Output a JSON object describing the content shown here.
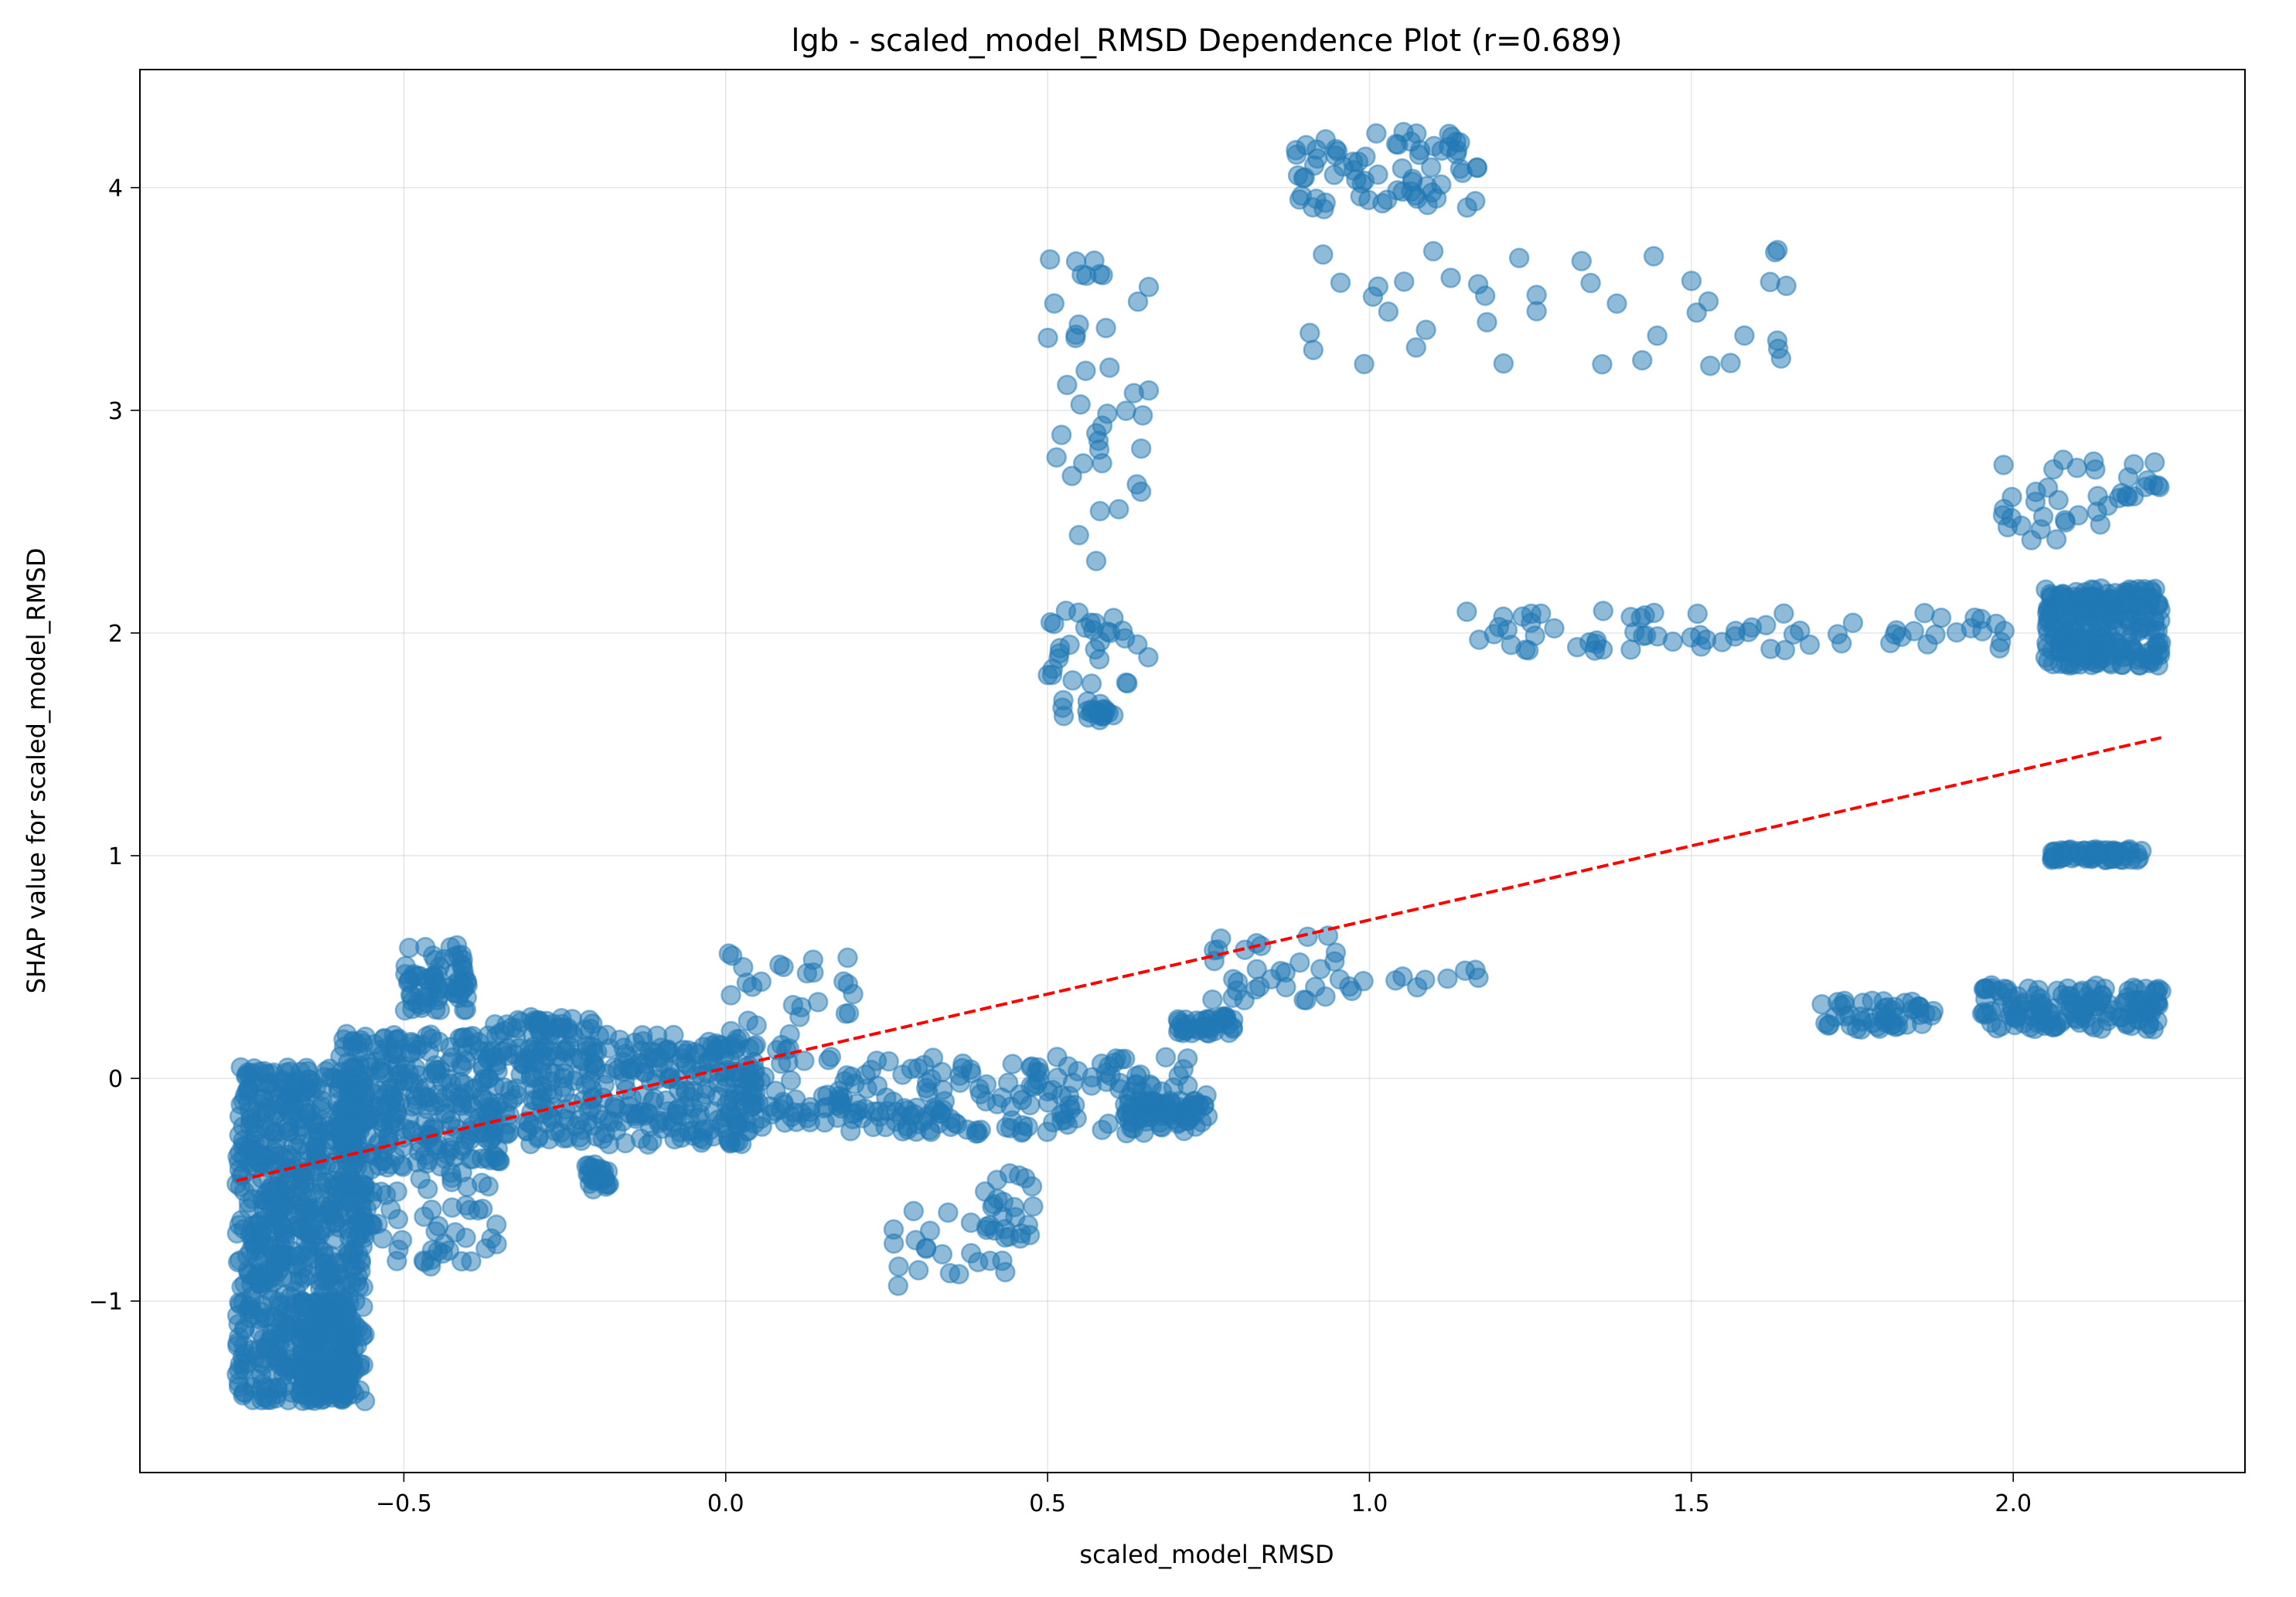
{
  "chart_data": {
    "type": "scatter",
    "title": "lgb - scaled_model_RMSD Dependence Plot (r=0.689)",
    "xlabel": "scaled_model_RMSD",
    "ylabel": "SHAP value for scaled_model_RMSD",
    "xlim": [
      -0.91,
      2.36
    ],
    "ylim": [
      -1.77,
      4.53
    ],
    "x_ticks": [
      -0.5,
      0.0,
      0.5,
      1.0,
      1.5,
      2.0
    ],
    "x_tick_labels": [
      "−0.5",
      "0.0",
      "0.5",
      "1.0",
      "1.5",
      "2.0"
    ],
    "y_ticks": [
      -1,
      0,
      1,
      2,
      3,
      4
    ],
    "y_tick_labels": [
      "−1",
      "0",
      "1",
      "2",
      "3",
      "4"
    ],
    "grid": true,
    "point_color": "#1f77b4",
    "trend_color": "#ff0000",
    "trend_line": {
      "x": [
        -0.76,
        2.23
      ],
      "y": [
        -0.46,
        1.53
      ]
    },
    "clusters": [
      {
        "x": [
          -0.76,
          -0.56
        ],
        "y": [
          -1.45,
          0.05
        ],
        "n": 750
      },
      {
        "x": [
          -0.66,
          -0.58
        ],
        "y": [
          -1.45,
          -1.0
        ],
        "n": 180
      },
      {
        "x": [
          -0.6,
          -0.35
        ],
        "y": [
          -0.4,
          0.2
        ],
        "n": 300
      },
      {
        "x": [
          -0.35,
          0.05
        ],
        "y": [
          -0.3,
          0.15
        ],
        "n": 280
      },
      {
        "x": [
          0.0,
          0.75
        ],
        "y": [
          -0.25,
          0.1
        ],
        "n": 240
      },
      {
        "x": [
          -0.5,
          -0.4
        ],
        "y": [
          0.3,
          0.6
        ],
        "n": 70
      },
      {
        "x": [
          -0.6,
          -0.35
        ],
        "y": [
          -0.85,
          -0.4
        ],
        "n": 60
      },
      {
        "x": [
          -0.22,
          -0.18
        ],
        "y": [
          -0.5,
          -0.38
        ],
        "n": 25
      },
      {
        "x": [
          -0.36,
          -0.2
        ],
        "y": [
          0.18,
          0.28
        ],
        "n": 40
      },
      {
        "x": [
          -0.2,
          0.1
        ],
        "y": [
          0.05,
          0.2
        ],
        "n": 40
      },
      {
        "x": [
          0.0,
          0.2
        ],
        "y": [
          0.2,
          0.6
        ],
        "n": 25
      },
      {
        "x": [
          0.62,
          0.75
        ],
        "y": [
          -0.2,
          -0.1
        ],
        "n": 60
      },
      {
        "x": [
          0.68,
          0.79
        ],
        "y": [
          0.2,
          0.28
        ],
        "n": 40
      },
      {
        "x": [
          0.25,
          0.45
        ],
        "y": [
          -0.95,
          -0.55
        ],
        "n": 25
      },
      {
        "x": [
          0.4,
          0.48
        ],
        "y": [
          -0.72,
          -0.42
        ],
        "n": 20
      },
      {
        "x": [
          0.75,
          0.95
        ],
        "y": [
          0.35,
          0.65
        ],
        "n": 30
      },
      {
        "x": [
          0.95,
          1.17
        ],
        "y": [
          0.38,
          0.5
        ],
        "n": 12
      },
      {
        "x": [
          0.5,
          0.66
        ],
        "y": [
          1.6,
          2.1
        ],
        "n": 35
      },
      {
        "x": [
          0.56,
          0.6
        ],
        "y": [
          1.6,
          1.66
        ],
        "n": 15
      },
      {
        "x": [
          0.5,
          0.66
        ],
        "y": [
          2.3,
          3.7
        ],
        "n": 40
      },
      {
        "x": [
          0.88,
          1.17
        ],
        "y": [
          3.9,
          4.25
        ],
        "n": 70
      },
      {
        "x": [
          0.9,
          1.65
        ],
        "y": [
          3.2,
          3.72
        ],
        "n": 40
      },
      {
        "x": [
          1.15,
          2.0
        ],
        "y": [
          1.92,
          2.1
        ],
        "n": 70
      },
      {
        "x": [
          2.05,
          2.23
        ],
        "y": [
          1.85,
          2.2
        ],
        "n": 260
      },
      {
        "x": [
          1.98,
          2.23
        ],
        "y": [
          2.4,
          2.8
        ],
        "n": 40
      },
      {
        "x": [
          2.06,
          2.2
        ],
        "y": [
          0.98,
          1.03
        ],
        "n": 70
      },
      {
        "x": [
          1.7,
          1.88
        ],
        "y": [
          0.22,
          0.35
        ],
        "n": 50
      },
      {
        "x": [
          1.95,
          2.23
        ],
        "y": [
          0.22,
          0.42
        ],
        "n": 150
      }
    ]
  }
}
